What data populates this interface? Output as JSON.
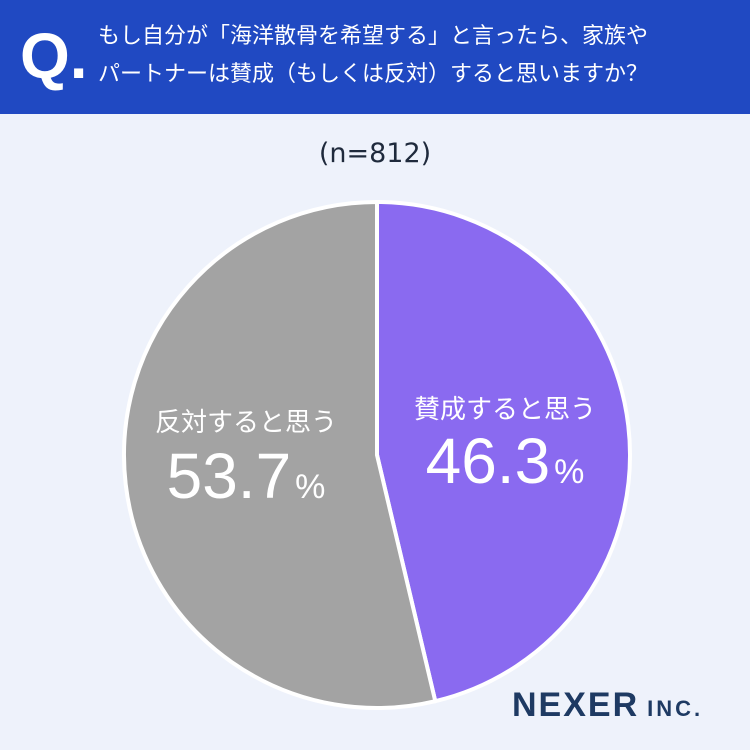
{
  "header": {
    "q_mark": "Q.",
    "line1": "もし自分が「海洋散骨を希望する」と言ったら、家族や",
    "line2": "パートナーは賛成（もしくは反対）すると思いますか？"
  },
  "sample_size": "(n=812)",
  "logo": {
    "name": "NEXER",
    "suffix": "INC."
  },
  "colors": {
    "header": "#2049c2",
    "background": "#eef2fb",
    "agree": "#8a6af0",
    "disagree": "#a3a3a3"
  },
  "chart_data": {
    "type": "pie",
    "slices": [
      {
        "label": "賛成すると思う",
        "value": 46.3,
        "value_text": "46.3",
        "unit": "%",
        "color": "#8a6af0"
      },
      {
        "label": "反対すると思う",
        "value": 53.7,
        "value_text": "53.7",
        "unit": "%",
        "color": "#a3a3a3"
      }
    ]
  }
}
